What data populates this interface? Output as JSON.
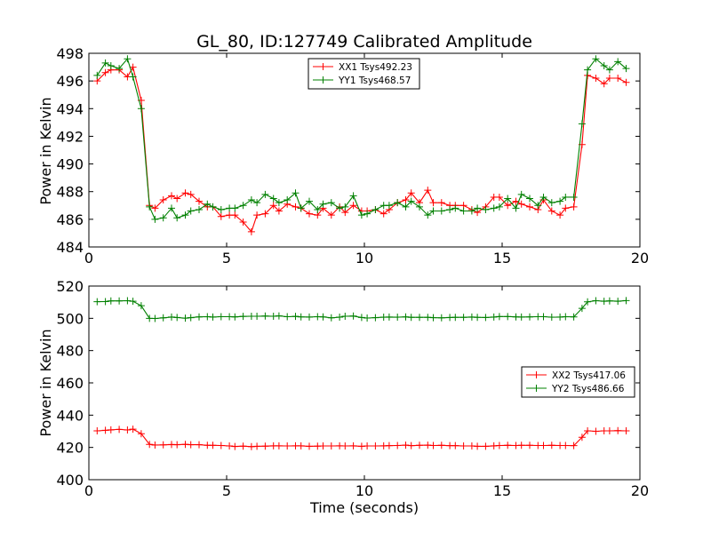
{
  "figure": {
    "title": "GL_80, ID:127749 Calibrated Amplitude",
    "xlabel": "Time (seconds)",
    "ylabel_top": "Power in Kelvin",
    "ylabel_bottom": "Power in Kelvin"
  },
  "chart_data": [
    {
      "type": "line",
      "title": "GL_80, ID:127749 Calibrated Amplitude",
      "xlabel": "",
      "ylabel": "Power in Kelvin",
      "xlim": [
        0,
        20
      ],
      "ylim": [
        484,
        498
      ],
      "xticks": [
        0,
        5,
        10,
        15,
        20
      ],
      "yticks": [
        484,
        486,
        488,
        490,
        492,
        494,
        496,
        498
      ],
      "grid": false,
      "legend_position": "top-center",
      "x": [
        0.3,
        0.6,
        0.8,
        1.1,
        1.4,
        1.6,
        1.9,
        2.2,
        2.4,
        2.7,
        3.0,
        3.2,
        3.5,
        3.7,
        4.0,
        4.3,
        4.5,
        4.8,
        5.1,
        5.3,
        5.6,
        5.9,
        6.1,
        6.4,
        6.7,
        6.9,
        7.2,
        7.5,
        7.7,
        8.0,
        8.3,
        8.5,
        8.8,
        9.1,
        9.3,
        9.6,
        9.9,
        10.1,
        10.4,
        10.7,
        10.9,
        11.2,
        11.5,
        11.7,
        12.0,
        12.3,
        12.5,
        12.8,
        13.1,
        13.3,
        13.6,
        13.9,
        14.1,
        14.4,
        14.7,
        14.9,
        15.2,
        15.5,
        15.7,
        16.0,
        16.3,
        16.5,
        16.8,
        17.1,
        17.3,
        17.6,
        17.9,
        18.1,
        18.4,
        18.7,
        18.9,
        19.2,
        19.5
      ],
      "series": [
        {
          "name": "XX1 Tsys492.23",
          "color": "#ff0000",
          "values": [
            496.0,
            496.6,
            496.8,
            496.8,
            496.3,
            497.0,
            494.6,
            487.0,
            486.8,
            487.4,
            487.7,
            487.5,
            487.9,
            487.8,
            487.3,
            486.9,
            486.9,
            486.2,
            486.3,
            486.3,
            485.8,
            485.1,
            486.3,
            486.4,
            487.0,
            486.6,
            487.1,
            486.9,
            486.8,
            486.4,
            486.3,
            486.8,
            486.3,
            486.9,
            486.5,
            487.0,
            486.6,
            486.6,
            486.7,
            486.4,
            486.7,
            487.2,
            487.4,
            487.9,
            487.2,
            488.1,
            487.2,
            487.2,
            487.0,
            487.0,
            487.0,
            486.7,
            486.5,
            486.9,
            487.6,
            487.6,
            487.0,
            487.3,
            487.1,
            486.9,
            486.7,
            487.4,
            486.6,
            486.3,
            486.8,
            486.9,
            491.4,
            496.4,
            496.2,
            495.8,
            496.2,
            496.2,
            495.9
          ]
        },
        {
          "name": "YY1 Tsys468.57",
          "color": "#008000",
          "values": [
            496.4,
            497.3,
            497.1,
            496.9,
            497.6,
            496.3,
            494.0,
            486.9,
            486.0,
            486.1,
            486.8,
            486.1,
            486.3,
            486.6,
            486.7,
            487.1,
            486.9,
            486.7,
            486.8,
            486.8,
            487.0,
            487.4,
            487.2,
            487.8,
            487.5,
            487.2,
            487.4,
            487.9,
            486.8,
            487.3,
            486.7,
            487.1,
            487.2,
            486.8,
            486.9,
            487.7,
            486.3,
            486.4,
            486.7,
            487.0,
            487.0,
            487.2,
            486.9,
            487.3,
            486.9,
            486.3,
            486.6,
            486.6,
            486.7,
            486.8,
            486.6,
            486.6,
            486.8,
            486.7,
            486.8,
            486.9,
            487.5,
            486.8,
            487.8,
            487.5,
            487.0,
            487.6,
            487.2,
            487.3,
            487.6,
            487.6,
            492.9,
            496.8,
            497.6,
            497.1,
            496.8,
            497.4,
            496.9
          ]
        }
      ]
    },
    {
      "type": "line",
      "title": "",
      "xlabel": "Time (seconds)",
      "ylabel": "Power in Kelvin",
      "xlim": [
        0,
        20
      ],
      "ylim": [
        400,
        520
      ],
      "xticks": [
        0,
        5,
        10,
        15,
        20
      ],
      "yticks": [
        400,
        420,
        440,
        460,
        480,
        500,
        520
      ],
      "grid": false,
      "legend_position": "center-right",
      "x": [
        0.3,
        0.6,
        0.8,
        1.1,
        1.4,
        1.6,
        1.9,
        2.2,
        2.4,
        2.7,
        3.0,
        3.2,
        3.5,
        3.7,
        4.0,
        4.3,
        4.5,
        4.8,
        5.1,
        5.3,
        5.6,
        5.9,
        6.1,
        6.4,
        6.7,
        6.9,
        7.2,
        7.5,
        7.7,
        8.0,
        8.3,
        8.5,
        8.8,
        9.1,
        9.3,
        9.6,
        9.9,
        10.1,
        10.4,
        10.7,
        10.9,
        11.2,
        11.5,
        11.7,
        12.0,
        12.3,
        12.5,
        12.8,
        13.1,
        13.3,
        13.6,
        13.9,
        14.1,
        14.4,
        14.7,
        14.9,
        15.2,
        15.5,
        15.7,
        16.0,
        16.3,
        16.5,
        16.8,
        17.1,
        17.3,
        17.6,
        17.9,
        18.1,
        18.4,
        18.7,
        18.9,
        19.2,
        19.5
      ],
      "series": [
        {
          "name": "XX2 Tsys417.06",
          "color": "#ff0000",
          "values": [
            430.3,
            430.6,
            430.9,
            431.2,
            430.8,
            431.3,
            428.5,
            421.9,
            421.5,
            421.6,
            421.8,
            421.7,
            421.9,
            421.7,
            421.7,
            421.3,
            421.3,
            421.2,
            420.9,
            420.6,
            420.8,
            420.5,
            420.7,
            420.8,
            421.0,
            421.0,
            420.9,
            421.0,
            421.0,
            420.7,
            420.8,
            420.9,
            420.9,
            421.0,
            420.9,
            421.0,
            420.7,
            420.9,
            420.9,
            421.0,
            421.1,
            421.2,
            421.4,
            421.1,
            421.3,
            421.4,
            421.2,
            421.3,
            421.1,
            421.1,
            420.9,
            420.9,
            420.7,
            420.7,
            421.0,
            421.2,
            421.3,
            421.2,
            421.3,
            421.3,
            421.2,
            421.2,
            421.3,
            421.2,
            421.2,
            421.1,
            426.3,
            430.3,
            430.0,
            430.3,
            430.3,
            430.4,
            430.3
          ]
        },
        {
          "name": "YY2 Tsys486.66",
          "color": "#008000",
          "values": [
            510.3,
            510.4,
            510.8,
            510.8,
            510.9,
            510.6,
            507.8,
            500.0,
            499.9,
            500.3,
            500.8,
            500.5,
            500.1,
            500.4,
            500.9,
            501.0,
            500.8,
            501.0,
            501.0,
            500.9,
            501.2,
            501.3,
            501.3,
            501.4,
            501.3,
            501.5,
            501.0,
            501.2,
            500.9,
            500.8,
            501.0,
            500.9,
            500.3,
            500.7,
            501.3,
            501.4,
            500.5,
            500.2,
            500.4,
            500.7,
            500.8,
            500.7,
            500.9,
            500.6,
            500.6,
            500.6,
            500.4,
            500.3,
            500.5,
            500.6,
            500.6,
            500.8,
            500.6,
            500.5,
            500.8,
            501.1,
            501.1,
            500.9,
            500.8,
            500.9,
            501.0,
            501.0,
            500.7,
            500.8,
            501.0,
            500.9,
            506.2,
            510.2,
            510.9,
            510.6,
            510.8,
            510.6,
            511.0
          ]
        }
      ]
    }
  ]
}
